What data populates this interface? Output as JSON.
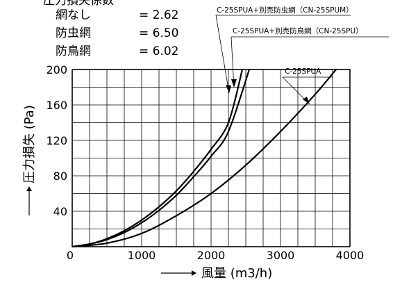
{
  "coefficients": {
    "title": "圧力損失係数",
    "rows": [
      {
        "label": "網なし",
        "value": "= 2.62"
      },
      {
        "label": "防虫網",
        "value": "= 6.50"
      },
      {
        "label": "防鳥網",
        "value": "= 6.02"
      }
    ]
  },
  "chart_data": {
    "type": "line",
    "xlabel": "風量 (m3/h)",
    "ylabel": "圧力損失 (Pa)",
    "xlim": [
      0,
      4000
    ],
    "ylim": [
      0,
      200
    ],
    "x_ticks": [
      0,
      1000,
      2000,
      3000,
      4000
    ],
    "y_ticks": [
      40,
      80,
      120,
      160,
      200
    ],
    "x_ticks_labels": [
      "0",
      "1000",
      "2000",
      "3000",
      "4000"
    ],
    "y_ticks_labels": [
      "40",
      "80",
      "120",
      "160",
      "200"
    ],
    "grid": true,
    "series": [
      {
        "name": "C-25SPUA+別売防虫網（CN-25SPUM）",
        "x": [
          0,
          250,
          500,
          750,
          1000,
          1250,
          1500,
          1750,
          2000,
          2250,
          2450
        ],
        "y": [
          0,
          3,
          9,
          18,
          30,
          45,
          63,
          85,
          110,
          140,
          200
        ]
      },
      {
        "name": "C-25SPUA+別売防鳥網（CN-25SPU）",
        "x": [
          0,
          250,
          500,
          750,
          1000,
          1250,
          1500,
          1750,
          2000,
          2250,
          2550
        ],
        "y": [
          0,
          3,
          8,
          16,
          27,
          41,
          58,
          79,
          102,
          130,
          200
        ]
      },
      {
        "name": "C-25SPUA",
        "x": [
          0,
          500,
          1000,
          1500,
          2000,
          2500,
          3000,
          3500,
          3800
        ],
        "y": [
          0,
          4,
          15,
          35,
          60,
          92,
          130,
          172,
          200
        ]
      }
    ]
  }
}
